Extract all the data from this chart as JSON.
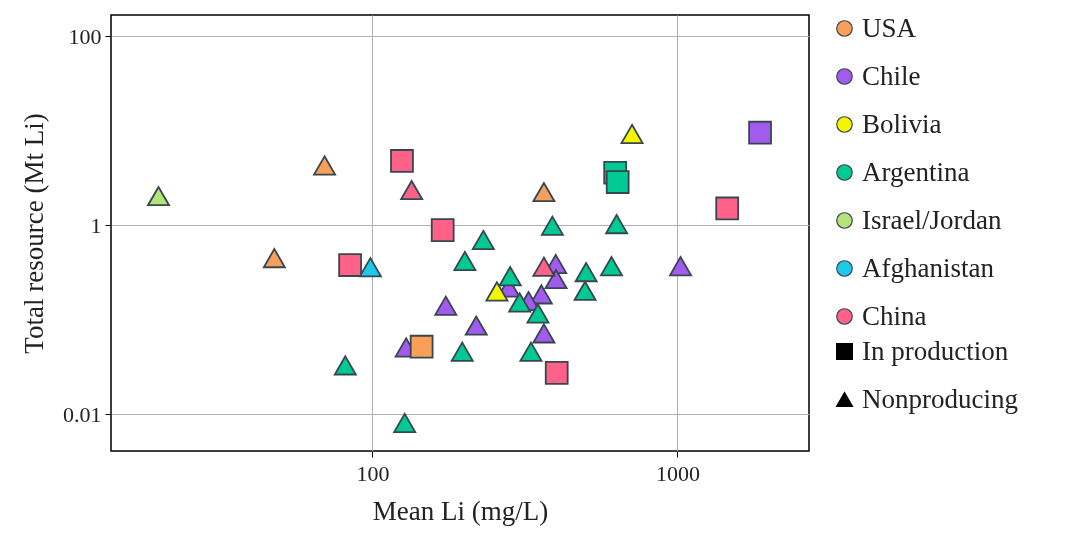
{
  "chart_data": {
    "type": "scatter",
    "xlabel": "Mean Li (mg/L)",
    "ylabel": "Total resource (Mt Li)",
    "log": "xy",
    "xlim": [
      13.9,
      2700
    ],
    "ylim": [
      0.0041,
      168
    ],
    "xticks": [
      100,
      1000
    ],
    "yticks": [
      0.01,
      1,
      100
    ],
    "grid": true,
    "legend": "right",
    "series": [
      {
        "name": "USA",
        "color": "#f8a05a",
        "marker": "triangle",
        "x": [
          69.7,
          47.7,
          365
        ],
        "values": [
          4.3,
          0.45,
          2.25
        ]
      },
      {
        "name": "Chile",
        "color": "#a35bef",
        "marker": "triangle",
        "x": [
          174,
          129,
          1024,
          399,
          400,
          280,
          358,
          325,
          219,
          365
        ],
        "values": [
          0.141,
          0.051,
          0.37,
          0.39,
          0.27,
          0.22,
          0.186,
          0.158,
          0.087,
          0.072
        ]
      },
      {
        "name": "Bolivia",
        "color": "#f5f500",
        "marker": "triangle",
        "x": [
          710,
          256
        ],
        "values": [
          9.25,
          0.2
        ]
      },
      {
        "name": "Argentina",
        "color": "#00c994",
        "marker": "triangle",
        "x": [
          81.5,
          127.6,
          389,
          632,
          231,
          201,
          502,
          608,
          283,
          304,
          349,
          498,
          197,
          331
        ],
        "values": [
          0.033,
          0.0081,
          0.99,
          1.03,
          0.7,
          0.42,
          0.32,
          0.37,
          0.29,
          0.153,
          0.117,
          0.203,
          0.046,
          0.046
        ]
      },
      {
        "name": "Israel/Jordan",
        "color": "#b5e37a",
        "marker": "triangle",
        "x": [
          19.9
        ],
        "values": [
          2.04
        ]
      },
      {
        "name": "Afghanistan",
        "color": "#1ec8e8",
        "marker": "triangle",
        "x": [
          98.5
        ],
        "values": [
          0.36
        ]
      },
      {
        "name": "China",
        "color": "#ff6189",
        "marker": "triangle",
        "x": [
          134.5,
          365
        ],
        "values": [
          2.36,
          0.365
        ]
      },
      {
        "color": "#f8a05a",
        "marker": "square",
        "x": [
          145
        ],
        "values": [
          0.052
        ]
      },
      {
        "color": "#a35bef",
        "marker": "square",
        "x": [
          1866
        ],
        "values": [
          9.55
        ]
      },
      {
        "color": "#00c994",
        "marker": "square",
        "x": [
          625,
          637
        ],
        "values": [
          3.6,
          2.87
        ]
      },
      {
        "color": "#ff6189",
        "marker": "square",
        "x": [
          125,
          170,
          84.5,
          1456,
          402
        ],
        "values": [
          4.8,
          0.89,
          0.38,
          1.51,
          0.0275
        ]
      },
      {
        "name": "In production",
        "color": "#000000",
        "marker": "square"
      },
      {
        "name": "Nonproducing",
        "color": "#000000",
        "marker": "triangle"
      }
    ]
  }
}
